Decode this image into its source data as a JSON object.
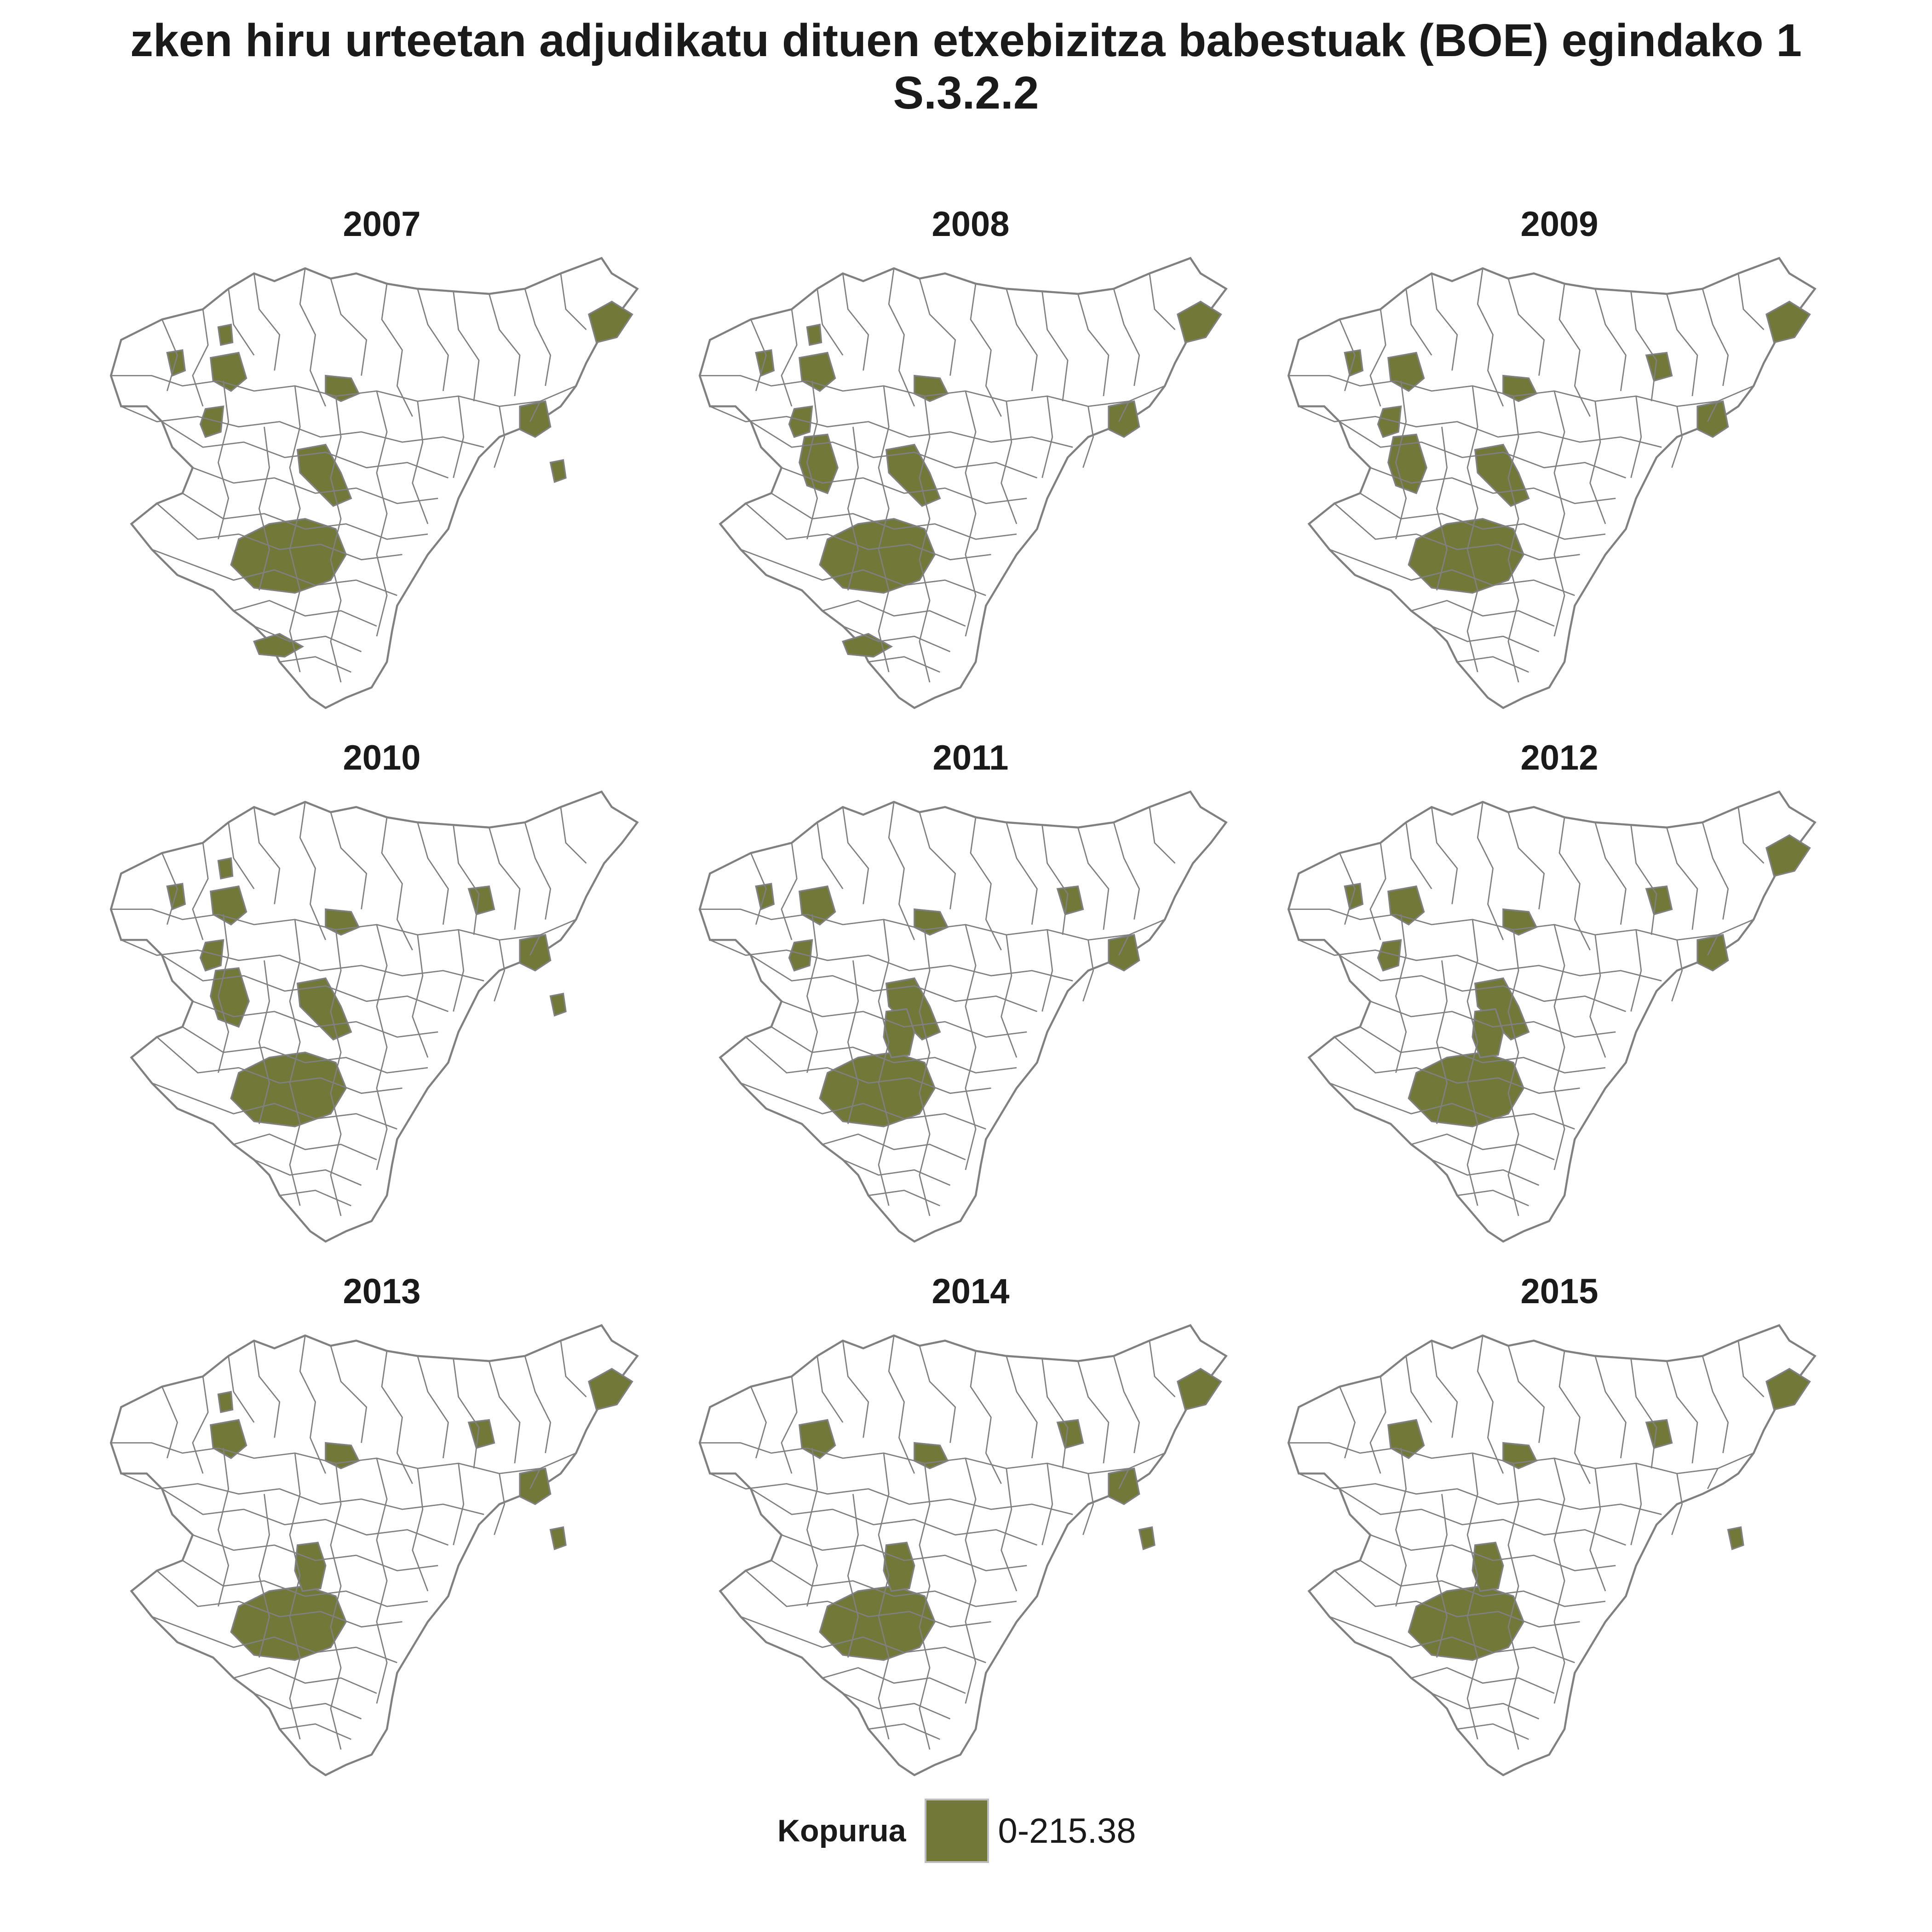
{
  "title": {
    "line1": "zken hiru urteetan adjudikatu dituen etxebizitza babestuak (BOE) egindako 1",
    "line2": "S.3.2.2"
  },
  "colors": {
    "fill": "#717838",
    "border": "#808080",
    "empty": "#ffffff"
  },
  "panels": [
    {
      "year": "2007",
      "highlighted": [
        "west-small",
        "north-small",
        "nw-mid",
        "nw-blob",
        "center-mid",
        "center-big",
        "east-far",
        "east-cluster",
        "east-small",
        "south-big",
        "far-south"
      ]
    },
    {
      "year": "2008",
      "highlighted": [
        "west-small",
        "north-small",
        "nw-mid",
        "nw-blob",
        "w-mid-big",
        "center-mid",
        "center-big",
        "east-far",
        "east-cluster",
        "south-big",
        "far-south"
      ]
    },
    {
      "year": "2009",
      "highlighted": [
        "west-small",
        "nw-mid",
        "nw-blob",
        "w-mid-big",
        "center-big",
        "center-mid",
        "north-east",
        "east-cluster",
        "east-far",
        "south-big"
      ]
    },
    {
      "year": "2010",
      "highlighted": [
        "west-small",
        "north-small",
        "nw-mid",
        "nw-blob",
        "w-mid-big",
        "center-mid",
        "center-big",
        "north-east",
        "east-cluster",
        "east-small",
        "south-big"
      ]
    },
    {
      "year": "2011",
      "highlighted": [
        "west-small",
        "nw-mid",
        "nw-blob",
        "center-mid",
        "center-big",
        "north-east",
        "east-cluster",
        "south-big",
        "south-stem"
      ]
    },
    {
      "year": "2012",
      "highlighted": [
        "west-small",
        "nw-mid",
        "nw-blob",
        "center-mid",
        "center-big",
        "north-east",
        "east-cluster",
        "east-far",
        "south-big",
        "south-stem"
      ]
    },
    {
      "year": "2013",
      "highlighted": [
        "nw-mid",
        "north-small",
        "center-mid",
        "north-east",
        "east-cluster",
        "east-far",
        "east-small",
        "south-big",
        "south-stem"
      ]
    },
    {
      "year": "2014",
      "highlighted": [
        "nw-mid",
        "center-mid",
        "north-east",
        "east-cluster",
        "east-far",
        "east-small",
        "south-big",
        "south-stem"
      ]
    },
    {
      "year": "2015",
      "highlighted": [
        "nw-mid",
        "center-mid",
        "north-east",
        "east-far",
        "east-small",
        "south-big",
        "south-stem"
      ]
    }
  ],
  "legend": {
    "title": "Kopurua",
    "label": "0-215.38",
    "color": "#717838"
  }
}
